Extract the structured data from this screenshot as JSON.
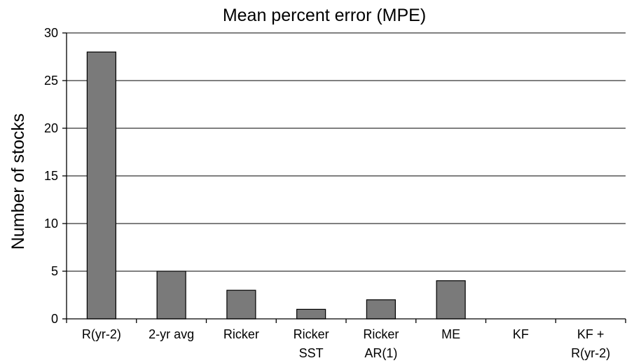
{
  "chart_data": {
    "type": "bar",
    "title": "Mean percent error (MPE)",
    "xlabel": "",
    "ylabel": "Number of stocks",
    "categories": [
      [
        "R(yr-2)"
      ],
      [
        "2-yr avg"
      ],
      [
        "Ricker"
      ],
      [
        "Ricker",
        "SST"
      ],
      [
        "Ricker",
        "AR(1)"
      ],
      [
        "ME"
      ],
      [
        "KF"
      ],
      [
        "KF +",
        "R(yr-2)"
      ]
    ],
    "values": [
      28,
      5,
      3,
      1,
      2,
      4,
      0,
      0
    ],
    "ylim": [
      0,
      30
    ],
    "yticks": [
      0,
      5,
      10,
      15,
      20,
      25,
      30
    ],
    "grid": true,
    "legend": "none",
    "bar_color": "#7a7a7a"
  }
}
